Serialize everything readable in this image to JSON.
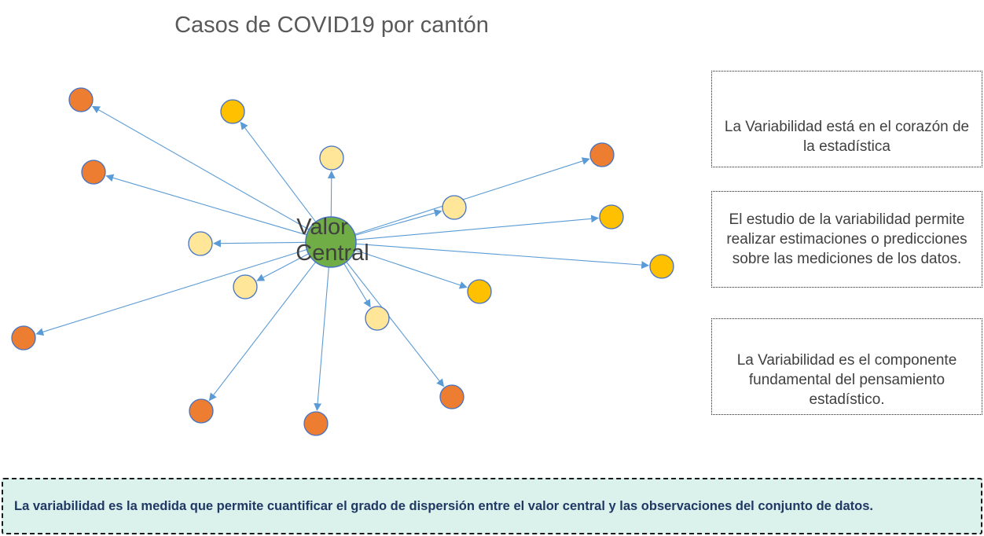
{
  "diagram": {
    "title": "Casos de COVID19 por cantón",
    "center": {
      "label_line1": "Valor",
      "label_line2": "Central",
      "color": "#70ad47"
    },
    "colors": {
      "far": "#ed7d31",
      "mid": "#ffc000",
      "near": "#ffe699",
      "edge": "#5b9bd5",
      "node_stroke": "#4472c4"
    }
  },
  "notes": [
    "La Variabilidad está en el corazón de la estadística",
    "El estudio de la variabilidad permite realizar estimaciones o predicciones sobre las mediciones de los datos.",
    "La Variabilidad es el componente fundamental del pensamiento estadístico."
  ],
  "definition": "La variabilidad es la medida que permite cuantificar el grado de dispersión entre el valor central y las observaciones del conjunto de datos."
}
